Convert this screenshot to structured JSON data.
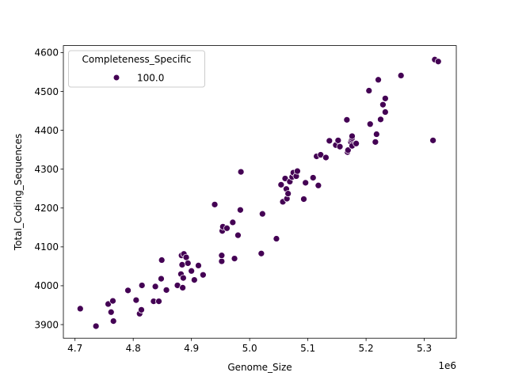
{
  "chart_data": {
    "type": "scatter",
    "xlabel": "Genome_Size",
    "ylabel": "Total_Coding_Sequences",
    "x_offset_label": "1e6",
    "xlim": [
      4.68,
      5.355
    ],
    "ylim": [
      3865,
      4618
    ],
    "x_ticks": [
      4.7,
      4.8,
      4.9,
      5.0,
      5.1,
      5.2,
      5.3
    ],
    "x_tick_labels": [
      "4.7",
      "4.8",
      "4.9",
      "5.0",
      "5.1",
      "5.2",
      "5.3"
    ],
    "y_ticks": [
      3900,
      4000,
      4100,
      4200,
      4300,
      4400,
      4500,
      4600
    ],
    "y_tick_labels": [
      "3900",
      "4000",
      "4100",
      "4200",
      "4300",
      "4400",
      "4500",
      "4600"
    ],
    "grid": false,
    "legend": {
      "title": "Completeness_Specific",
      "placement": "top-left",
      "entries": [
        {
          "label": "100.0",
          "color": "#440154"
        }
      ]
    },
    "series": [
      {
        "name": "100.0",
        "color": "#440154",
        "points": [
          {
            "x": 4.709,
            "y": 3941
          },
          {
            "x": 4.736,
            "y": 3896
          },
          {
            "x": 4.757,
            "y": 3953
          },
          {
            "x": 4.762,
            "y": 3932
          },
          {
            "x": 4.765,
            "y": 3961
          },
          {
            "x": 4.766,
            "y": 3909
          },
          {
            "x": 4.791,
            "y": 3988
          },
          {
            "x": 4.805,
            "y": 3963
          },
          {
            "x": 4.811,
            "y": 3928
          },
          {
            "x": 4.814,
            "y": 3938
          },
          {
            "x": 4.815,
            "y": 4001
          },
          {
            "x": 4.835,
            "y": 3960
          },
          {
            "x": 4.838,
            "y": 3998
          },
          {
            "x": 4.844,
            "y": 3960
          },
          {
            "x": 4.848,
            "y": 4018
          },
          {
            "x": 4.849,
            "y": 4066
          },
          {
            "x": 4.857,
            "y": 3989
          },
          {
            "x": 4.876,
            "y": 4001
          },
          {
            "x": 4.882,
            "y": 4030
          },
          {
            "x": 4.883,
            "y": 4078
          },
          {
            "x": 4.884,
            "y": 4054
          },
          {
            "x": 4.885,
            "y": 3995
          },
          {
            "x": 4.886,
            "y": 4020
          },
          {
            "x": 4.887,
            "y": 4082
          },
          {
            "x": 4.891,
            "y": 4073
          },
          {
            "x": 4.894,
            "y": 4058
          },
          {
            "x": 4.9,
            "y": 4038
          },
          {
            "x": 4.905,
            "y": 4015
          },
          {
            "x": 4.912,
            "y": 4052
          },
          {
            "x": 4.92,
            "y": 4028
          },
          {
            "x": 4.94,
            "y": 4209
          },
          {
            "x": 4.952,
            "y": 4063
          },
          {
            "x": 4.952,
            "y": 4078
          },
          {
            "x": 4.953,
            "y": 4141
          },
          {
            "x": 4.954,
            "y": 4152
          },
          {
            "x": 4.961,
            "y": 4148
          },
          {
            "x": 4.971,
            "y": 4163
          },
          {
            "x": 4.974,
            "y": 4070
          },
          {
            "x": 4.98,
            "y": 4130
          },
          {
            "x": 4.984,
            "y": 4195
          },
          {
            "x": 4.985,
            "y": 4293
          },
          {
            "x": 5.02,
            "y": 4083
          },
          {
            "x": 5.022,
            "y": 4185
          },
          {
            "x": 5.046,
            "y": 4121
          },
          {
            "x": 5.054,
            "y": 4260
          },
          {
            "x": 5.057,
            "y": 4216
          },
          {
            "x": 5.061,
            "y": 4276
          },
          {
            "x": 5.063,
            "y": 4249
          },
          {
            "x": 5.064,
            "y": 4224
          },
          {
            "x": 5.066,
            "y": 4237
          },
          {
            "x": 5.069,
            "y": 4268
          },
          {
            "x": 5.073,
            "y": 4280
          },
          {
            "x": 5.075,
            "y": 4291
          },
          {
            "x": 5.08,
            "y": 4282
          },
          {
            "x": 5.082,
            "y": 4295
          },
          {
            "x": 5.093,
            "y": 4223
          },
          {
            "x": 5.096,
            "y": 4265
          },
          {
            "x": 5.109,
            "y": 4278
          },
          {
            "x": 5.115,
            "y": 4333
          },
          {
            "x": 5.118,
            "y": 4258
          },
          {
            "x": 5.122,
            "y": 4337
          },
          {
            "x": 5.131,
            "y": 4330
          },
          {
            "x": 5.137,
            "y": 4373
          },
          {
            "x": 5.148,
            "y": 4362
          },
          {
            "x": 5.152,
            "y": 4374
          },
          {
            "x": 5.155,
            "y": 4358
          },
          {
            "x": 5.167,
            "y": 4427
          },
          {
            "x": 5.168,
            "y": 4344
          },
          {
            "x": 5.169,
            "y": 4349
          },
          {
            "x": 5.174,
            "y": 4370
          },
          {
            "x": 5.175,
            "y": 4376
          },
          {
            "x": 5.176,
            "y": 4380
          },
          {
            "x": 5.176,
            "y": 4385
          },
          {
            "x": 5.176,
            "y": 4360
          },
          {
            "x": 5.183,
            "y": 4366
          },
          {
            "x": 5.205,
            "y": 4502
          },
          {
            "x": 5.207,
            "y": 4416
          },
          {
            "x": 5.216,
            "y": 4370
          },
          {
            "x": 5.218,
            "y": 4390
          },
          {
            "x": 5.221,
            "y": 4530
          },
          {
            "x": 5.225,
            "y": 4428
          },
          {
            "x": 5.229,
            "y": 4466
          },
          {
            "x": 5.233,
            "y": 4447
          },
          {
            "x": 5.233,
            "y": 4482
          },
          {
            "x": 5.26,
            "y": 4541
          },
          {
            "x": 5.315,
            "y": 4374
          },
          {
            "x": 5.318,
            "y": 4582
          },
          {
            "x": 5.324,
            "y": 4577
          }
        ]
      }
    ]
  }
}
